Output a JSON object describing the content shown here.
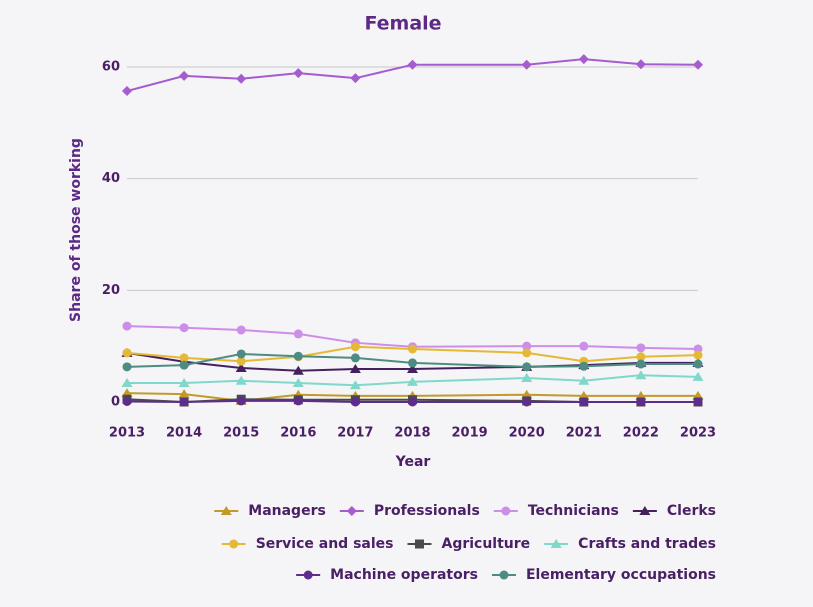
{
  "chart_data": {
    "type": "line",
    "title": "Female",
    "x_label": "Year",
    "y_label": "Share of those working",
    "x": [
      2013,
      2014,
      2015,
      2016,
      2017,
      2018,
      2020,
      2021,
      2022,
      2023
    ],
    "xlim": [
      2013,
      2023
    ],
    "xticks": [
      2013,
      2014,
      2015,
      2016,
      2017,
      2018,
      2019,
      2020,
      2021,
      2022,
      2023
    ],
    "ylim": [
      0,
      60
    ],
    "yticks": [
      0,
      20,
      40,
      60
    ],
    "grid": true,
    "series": [
      {
        "name": "Managers",
        "color": "#c39a2a",
        "marker": "triangle",
        "values": [
          1.6,
          1.4,
          0.2,
          1.3,
          1.1,
          1.1,
          1.3,
          1.1,
          1.1,
          1.1
        ]
      },
      {
        "name": "Professionals",
        "color": "#a65bcf",
        "marker": "diamond",
        "values": [
          55.7,
          58.4,
          57.9,
          58.9,
          58.0,
          60.4,
          60.4,
          61.4,
          60.5,
          60.4
        ]
      },
      {
        "name": "Technicians",
        "color": "#cd8ee8",
        "marker": "circle",
        "values": [
          13.6,
          13.3,
          12.9,
          12.2,
          10.6,
          9.9,
          10.0,
          10.0,
          9.7,
          9.5
        ]
      },
      {
        "name": "Clerks",
        "color": "#45205f",
        "marker": "triangle",
        "values": [
          8.8,
          7.2,
          6.1,
          5.6,
          5.9,
          5.9,
          6.3,
          6.6,
          7.0,
          7.0
        ]
      },
      {
        "name": "Service and sales",
        "color": "#e5b935",
        "marker": "circle",
        "values": [
          8.8,
          7.9,
          7.3,
          8.1,
          9.9,
          9.5,
          8.8,
          7.3,
          8.1,
          8.4
        ]
      },
      {
        "name": "Agriculture",
        "color": "#4a4a4a",
        "marker": "square",
        "values": [
          0.5,
          0,
          0.5,
          0.4,
          0.4,
          0.4,
          0.2,
          0,
          0,
          0
        ]
      },
      {
        "name": "Crafts and trades",
        "color": "#7fd8ca",
        "marker": "triangle",
        "values": [
          3.4,
          3.4,
          3.8,
          3.4,
          3.0,
          3.6,
          4.3,
          3.8,
          4.8,
          4.5
        ]
      },
      {
        "name": "Machine operators",
        "color": "#5e2c8c",
        "marker": "circle",
        "values": [
          0.1,
          0,
          0.2,
          0.2,
          0,
          0,
          0,
          0,
          0,
          0
        ]
      },
      {
        "name": "Elementary occupations",
        "color": "#4d8c82",
        "marker": "circle",
        "values": [
          6.3,
          6.6,
          8.6,
          8.2,
          7.9,
          7.0,
          6.3,
          6.4,
          6.8,
          6.8
        ]
      }
    ]
  }
}
